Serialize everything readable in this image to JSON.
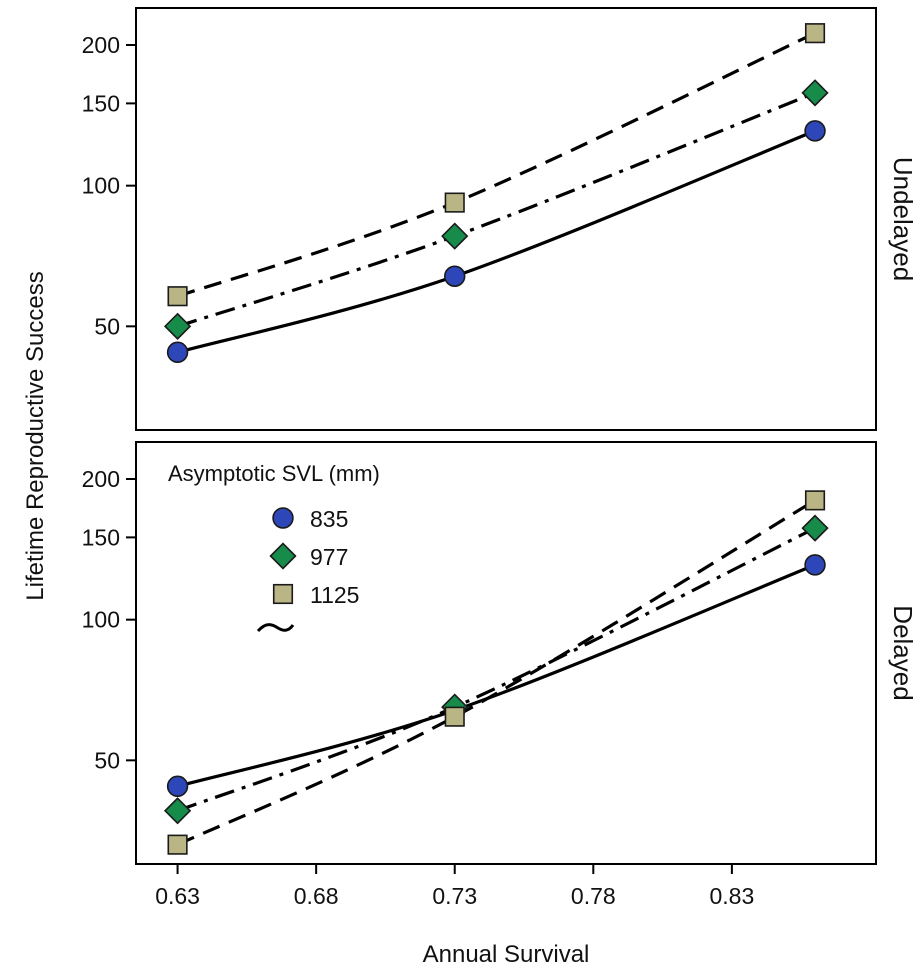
{
  "chart_data": {
    "type": "line",
    "x_label": "Annual Survival",
    "y_label": "Lifetime Reproductive Success",
    "x_ticks": [
      0.63,
      0.68,
      0.73,
      0.78,
      0.83
    ],
    "x_tick_labels": [
      "0.63",
      "0.68",
      "0.73",
      "0.78",
      "0.83"
    ],
    "xlim": [
      0.615,
      0.882
    ],
    "y_scale": "log",
    "y_ticks": [
      50,
      100,
      150,
      200
    ],
    "y_tick_labels": [
      "50",
      "100",
      "150",
      "200"
    ],
    "ylim": [
      30,
      240
    ],
    "grid": false,
    "legend": {
      "title": "Asymptotic SVL (mm)",
      "placement": "top-left of bottom panel",
      "entries": [
        {
          "label": "835",
          "marker": "circle",
          "color": "#2E47B8",
          "line": "solid"
        },
        {
          "label": "977",
          "marker": "diamond",
          "color": "#178C4A",
          "line": "dash-dot"
        },
        {
          "label": "1125",
          "marker": "square",
          "color": "#B9B585",
          "line": "dashed"
        }
      ]
    },
    "panels": [
      {
        "label": "Undelayed",
        "x": [
          0.63,
          0.73,
          0.86
        ],
        "series": [
          {
            "name": "835",
            "values": [
              44,
              64,
              131
            ]
          },
          {
            "name": "977",
            "values": [
              50,
              78,
              158
            ]
          },
          {
            "name": "1125",
            "values": [
              58,
              92,
              212
            ]
          }
        ]
      },
      {
        "label": "Delayed",
        "x": [
          0.63,
          0.73,
          0.86
        ],
        "series": [
          {
            "name": "835",
            "values": [
              44,
              64,
              131
            ]
          },
          {
            "name": "977",
            "values": [
              39,
              65,
              157
            ]
          },
          {
            "name": "1125",
            "values": [
              33,
              62,
              180
            ]
          }
        ]
      }
    ]
  },
  "layout_colors": {
    "frame": "#000000",
    "line": "#000000",
    "marker_edge": "#1a1a1a"
  }
}
